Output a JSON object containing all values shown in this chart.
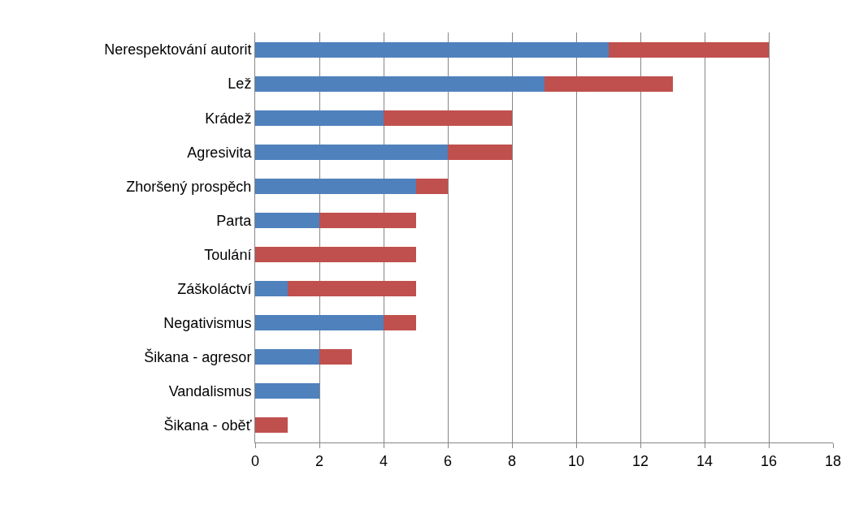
{
  "chart_data": {
    "type": "bar",
    "orientation": "horizontal",
    "stacked": true,
    "categories": [
      "Nerespektování autorit",
      "Lež",
      "Krádež",
      "Agresivita",
      "Zhoršený prospěch",
      "Parta",
      "Toulání",
      "Záškoláctví",
      "Negativismus",
      "Šikana - agresor",
      "Vandalismus",
      "Šikana - oběť"
    ],
    "series": [
      {
        "color": "#4f81bd",
        "values": [
          11,
          9,
          4,
          6,
          5,
          2,
          0,
          1,
          4,
          2,
          2,
          0
        ]
      },
      {
        "color": "#c0504d",
        "values": [
          5,
          4,
          4,
          2,
          1,
          3,
          5,
          4,
          1,
          1,
          0,
          1
        ]
      }
    ],
    "xlim": [
      0,
      18
    ],
    "xticks": [
      0,
      2,
      4,
      6,
      8,
      10,
      12,
      14,
      16,
      18
    ],
    "grid": "x"
  }
}
